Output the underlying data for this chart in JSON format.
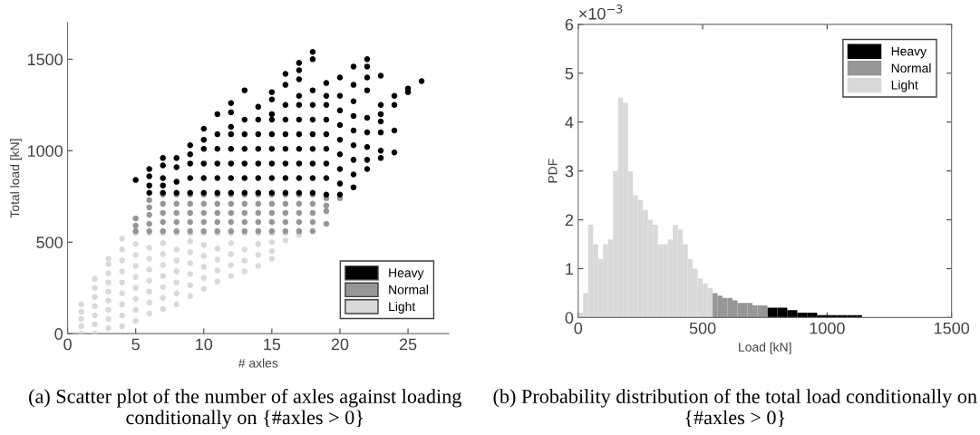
{
  "chart_data": [
    {
      "type": "scatter",
      "xlabel": "# axles",
      "ylabel": "Total load [kN]",
      "xlim": [
        0,
        28
      ],
      "ylim": [
        0,
        1700
      ],
      "xticks": [
        0,
        5,
        10,
        15,
        20,
        25
      ],
      "yticks": [
        0,
        500,
        1000,
        1500
      ],
      "marker": "circle",
      "legend": "bottom right",
      "grid": false,
      "annotations": [
        "(a) Scatter plot of the number of axles against loading conditionally on {#axles > 0}"
      ],
      "series": [
        {
          "name": "Heavy",
          "color": "#000000",
          "x": [
            5,
            6,
            6,
            6,
            6,
            7,
            7,
            7,
            7,
            7,
            8,
            8,
            8,
            8,
            9,
            9,
            9,
            9,
            9,
            10,
            10,
            10,
            10,
            10,
            10,
            11,
            11,
            11,
            11,
            11,
            11,
            12,
            12,
            12,
            12,
            12,
            12,
            12,
            12,
            13,
            13,
            13,
            13,
            13,
            13,
            13,
            14,
            14,
            14,
            14,
            14,
            14,
            14,
            15,
            15,
            15,
            15,
            15,
            15,
            15,
            15,
            15,
            16,
            16,
            16,
            16,
            16,
            16,
            16,
            16,
            16,
            17,
            17,
            17,
            17,
            17,
            17,
            17,
            17,
            17,
            17,
            17,
            18,
            18,
            18,
            18,
            18,
            18,
            18,
            18,
            18,
            18,
            19,
            19,
            19,
            19,
            19,
            19,
            19,
            19,
            19,
            20,
            20,
            20,
            20,
            20,
            20,
            20,
            20,
            20,
            21,
            21,
            21,
            21,
            21,
            21,
            21,
            21,
            21,
            22,
            22,
            22,
            22,
            22,
            22,
            22,
            22,
            22,
            23,
            23,
            23,
            23,
            23,
            23,
            23,
            24,
            24,
            24,
            24,
            25,
            25,
            26
          ],
          "values": [
            840,
            770,
            810,
            860,
            900,
            770,
            810,
            850,
            920,
            960,
            770,
            830,
            910,
            960,
            770,
            850,
            930,
            980,
            1030,
            770,
            850,
            930,
            1010,
            1060,
            1120,
            770,
            850,
            930,
            1010,
            1090,
            1200,
            770,
            850,
            930,
            1010,
            1090,
            1130,
            1210,
            1260,
            770,
            850,
            930,
            1010,
            1090,
            1170,
            1330,
            770,
            850,
            930,
            1010,
            1090,
            1170,
            1240,
            770,
            850,
            930,
            1010,
            1090,
            1170,
            1200,
            1280,
            1320,
            770,
            850,
            930,
            1010,
            1090,
            1170,
            1250,
            1360,
            1420,
            770,
            850,
            930,
            1010,
            1090,
            1170,
            1250,
            1300,
            1390,
            1440,
            1480,
            770,
            850,
            930,
            1010,
            1090,
            1170,
            1250,
            1330,
            1500,
            1540,
            760,
            850,
            930,
            1010,
            1090,
            1170,
            1250,
            1300,
            1370,
            760,
            820,
            900,
            980,
            1060,
            1140,
            1220,
            1300,
            1400,
            800,
            870,
            950,
            1030,
            1110,
            1190,
            1270,
            1360,
            1460,
            900,
            950,
            1020,
            1100,
            1180,
            1330,
            1400,
            1460,
            1500,
            960,
            1000,
            1100,
            1160,
            1200,
            1250,
            1410,
            990,
            1110,
            1250,
            1300,
            1320,
            1340,
            1380
          ]
        },
        {
          "name": "Normal",
          "color": "#969696",
          "x": [
            5,
            5,
            5,
            6,
            6,
            6,
            6,
            6,
            7,
            7,
            7,
            7,
            7,
            8,
            8,
            8,
            8,
            8,
            9,
            9,
            9,
            9,
            9,
            10,
            10,
            10,
            10,
            10,
            11,
            11,
            11,
            11,
            11,
            12,
            12,
            12,
            12,
            12,
            13,
            13,
            13,
            13,
            13,
            14,
            14,
            14,
            14,
            14,
            15,
            15,
            15,
            15,
            15,
            16,
            16,
            16,
            16,
            16,
            17,
            17,
            17,
            17,
            17,
            18,
            18,
            18,
            18,
            18,
            19,
            19,
            19,
            19,
            20
          ],
          "values": [
            560,
            590,
            630,
            560,
            600,
            650,
            690,
            730,
            560,
            610,
            660,
            710,
            760,
            560,
            610,
            660,
            710,
            760,
            560,
            610,
            660,
            710,
            760,
            560,
            610,
            660,
            710,
            760,
            560,
            610,
            660,
            710,
            760,
            560,
            610,
            660,
            710,
            760,
            560,
            610,
            660,
            710,
            760,
            560,
            610,
            660,
            710,
            760,
            560,
            610,
            660,
            710,
            760,
            560,
            610,
            660,
            710,
            760,
            560,
            610,
            660,
            710,
            760,
            560,
            610,
            660,
            710,
            760,
            600,
            670,
            700,
            740,
            740
          ]
        },
        {
          "name": "Light",
          "color": "#d9d9d9",
          "x": [
            1,
            1,
            1,
            1,
            1,
            2,
            2,
            2,
            2,
            2,
            2,
            2,
            3,
            3,
            3,
            3,
            3,
            3,
            3,
            3,
            3,
            4,
            4,
            4,
            4,
            4,
            4,
            4,
            4,
            4,
            5,
            5,
            5,
            5,
            5,
            5,
            5,
            5,
            5,
            6,
            6,
            6,
            6,
            6,
            6,
            6,
            6,
            7,
            7,
            7,
            7,
            7,
            7,
            7,
            7,
            8,
            8,
            8,
            8,
            8,
            8,
            8,
            9,
            9,
            9,
            9,
            9,
            9,
            9,
            10,
            10,
            10,
            10,
            10,
            10,
            11,
            11,
            11,
            11,
            11,
            12,
            12,
            12,
            12,
            12,
            13,
            13,
            13,
            13,
            14,
            14,
            14,
            14,
            15,
            15,
            15,
            15,
            16,
            16,
            17,
            17
          ],
          "values": [
            0,
            40,
            80,
            120,
            160,
            0,
            50,
            100,
            150,
            200,
            250,
            300,
            30,
            80,
            130,
            180,
            230,
            280,
            330,
            380,
            410,
            40,
            100,
            160,
            220,
            280,
            340,
            400,
            460,
            520,
            70,
            130,
            190,
            250,
            310,
            370,
            430,
            490,
            550,
            110,
            170,
            230,
            290,
            350,
            410,
            470,
            550,
            135,
            195,
            255,
            315,
            375,
            435,
            495,
            550,
            160,
            220,
            280,
            340,
            400,
            460,
            550,
            205,
            265,
            325,
            385,
            445,
            505,
            550,
            245,
            305,
            365,
            425,
            485,
            550,
            285,
            345,
            405,
            465,
            550,
            315,
            375,
            435,
            495,
            550,
            340,
            400,
            460,
            550,
            370,
            430,
            490,
            550,
            410,
            450,
            500,
            550,
            510,
            550,
            540,
            550
          ]
        }
      ]
    },
    {
      "type": "histogram",
      "xlabel": "Load [kN]",
      "ylabel": "PDF",
      "xlim": [
        0,
        1500
      ],
      "ylim": [
        0,
        6
      ],
      "xticks": [
        0,
        500,
        1000,
        1500
      ],
      "yticks": [
        0,
        1,
        2,
        3,
        4,
        5,
        6
      ],
      "bins": [
        0,
        20,
        40,
        60,
        80,
        100,
        120,
        140,
        160,
        180,
        200,
        220,
        240,
        260,
        280,
        300,
        320,
        340,
        360,
        380,
        400,
        420,
        440,
        460,
        480,
        500,
        520,
        540,
        560,
        580,
        600,
        620,
        640,
        660,
        680,
        700,
        720,
        740,
        760,
        780,
        800,
        820,
        840,
        860,
        880,
        900,
        920,
        940,
        960,
        980,
        1000,
        1020,
        1040,
        1060,
        1080,
        1100,
        1120,
        1140,
        1160,
        1180,
        1200,
        1220,
        1240,
        1260,
        1280,
        1300,
        1320,
        1340,
        1360,
        1380,
        1400,
        1420,
        1440,
        1460,
        1480,
        1500
      ],
      "legend": "top right",
      "grid": false,
      "annotations": [
        "×10$^{−3}$",
        "(b) Probability distribution of the total load conditionally on {#axles > 0}"
      ],
      "series": [
        {
          "name": "Heavy",
          "color": "#000000",
          "values": [
            null,
            null,
            null,
            null,
            null,
            null,
            null,
            null,
            null,
            null,
            null,
            null,
            null,
            null,
            null,
            null,
            null,
            null,
            null,
            null,
            null,
            null,
            null,
            null,
            null,
            null,
            null,
            null,
            null,
            null,
            null,
            null,
            null,
            null,
            null,
            null,
            null,
            null,
            0.2,
            0.2,
            0.2,
            0.2,
            0.15,
            0.15,
            0.1,
            0.1,
            0.1,
            0.1,
            0.05,
            0.05,
            0.05,
            0.05,
            0.05,
            0.05,
            0.05,
            0.05,
            0.05,
            0,
            0,
            0,
            0,
            0,
            0,
            0,
            0,
            0,
            0,
            0,
            0,
            0,
            0,
            0,
            0,
            0,
            0
          ]
        },
        {
          "name": "Normal",
          "color": "#969696",
          "values": [
            null,
            null,
            null,
            null,
            null,
            null,
            null,
            null,
            null,
            null,
            null,
            null,
            null,
            null,
            null,
            null,
            null,
            null,
            null,
            null,
            null,
            null,
            null,
            null,
            null,
            null,
            null,
            0.5,
            0.45,
            0.4,
            0.4,
            0.35,
            0.3,
            0.3,
            0.3,
            0.25,
            0.25,
            0.25,
            null,
            null,
            null,
            null,
            null,
            null,
            null,
            null,
            null,
            null,
            null,
            null,
            null,
            null,
            null,
            null,
            null,
            null,
            null,
            null,
            null,
            null,
            null,
            null,
            null,
            null,
            null,
            null,
            null,
            null,
            null,
            null,
            null,
            null,
            null,
            null,
            null
          ]
        },
        {
          "name": "Light",
          "color": "#d9d9d9",
          "values": [
            0.1,
            0.5,
            1.9,
            1.5,
            1.2,
            1.5,
            1.6,
            3.0,
            4.5,
            4.4,
            3.0,
            2.5,
            2.4,
            2.2,
            2.0,
            1.9,
            1.5,
            1.5,
            1.6,
            1.9,
            1.8,
            1.5,
            1.2,
            1.0,
            0.8,
            0.7,
            0.6,
            null,
            null,
            null,
            null,
            null,
            null,
            null,
            null,
            null,
            null,
            null,
            null,
            null,
            null,
            null,
            null,
            null,
            null,
            null,
            null,
            null,
            null,
            null,
            null,
            null,
            null,
            null,
            null,
            null,
            null,
            null,
            null,
            null,
            null,
            null,
            null,
            null,
            null,
            null,
            null,
            null,
            null,
            null,
            null,
            null,
            null,
            null,
            null
          ]
        }
      ]
    }
  ]
}
